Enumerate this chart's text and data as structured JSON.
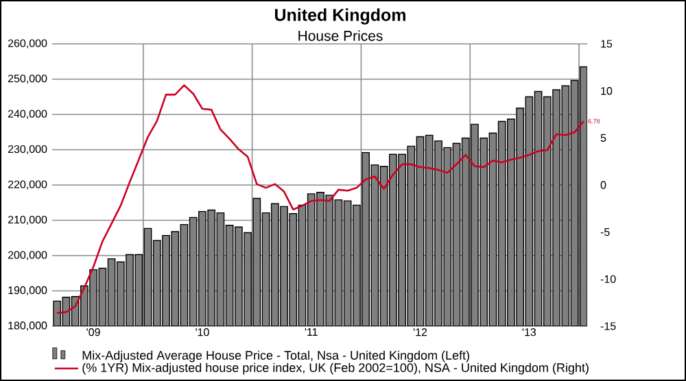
{
  "chart_data": {
    "type": "bar",
    "title": "United Kingdom",
    "subtitle": "House Prices",
    "x": [
      "2009-03",
      "2009-04",
      "2009-05",
      "2009-06",
      "2009-07",
      "2009-08",
      "2009-09",
      "2009-10",
      "2009-11",
      "2009-12",
      "2010-01",
      "2010-02",
      "2010-03",
      "2010-04",
      "2010-05",
      "2010-06",
      "2010-07",
      "2010-08",
      "2010-09",
      "2010-10",
      "2010-11",
      "2010-12",
      "2011-01",
      "2011-02",
      "2011-03",
      "2011-04",
      "2011-05",
      "2011-06",
      "2011-07",
      "2011-08",
      "2011-09",
      "2011-10",
      "2011-11",
      "2011-12",
      "2012-01",
      "2012-02",
      "2012-03",
      "2012-04",
      "2012-05",
      "2012-06",
      "2012-07",
      "2012-08",
      "2012-09",
      "2012-10",
      "2012-11",
      "2012-12",
      "2013-01",
      "2013-02",
      "2013-03",
      "2013-04",
      "2013-05",
      "2013-06",
      "2013-07",
      "2013-08",
      "2013-09",
      "2013-10",
      "2013-11",
      "2013-12",
      "2014-01"
    ],
    "series": [
      {
        "name": "Mix-Adjusted Average House Price - Total, Nsa - United Kingdom  (Left)",
        "color": "#808080",
        "values": [
          187100,
          188200,
          188400,
          191400,
          196000,
          196400,
          199100,
          198200,
          200300,
          200300,
          207700,
          204300,
          205700,
          206800,
          208800,
          210800,
          212500,
          212900,
          212100,
          208600,
          208100,
          206500,
          216200,
          212100,
          214700,
          213900,
          211900,
          214300,
          217500,
          217900,
          217100,
          215800,
          215500,
          214300,
          229200,
          225700,
          225300,
          228700,
          228700,
          231000,
          233700,
          234100,
          232500,
          230600,
          231800,
          233300,
          237200,
          233300,
          234700,
          238000,
          238700,
          241800,
          245000,
          246500,
          245000,
          247000,
          248100,
          249600,
          253500
        ]
      },
      {
        "name": "(% 1YR) Mix-adjusted house price index, UK (Feb 2002=100), NSA - United Kingdom  (Right)",
        "type": "line",
        "axis": "y2",
        "color": "#cc0022",
        "values": [
          -13.6,
          -13.5,
          -12.9,
          -10.9,
          -8.7,
          -6.0,
          -4.1,
          -2.2,
          0.3,
          2.7,
          5.1,
          6.8,
          9.6,
          9.6,
          10.6,
          9.7,
          8.1,
          8.0,
          5.9,
          4.9,
          3.8,
          3.0,
          0.1,
          -0.3,
          0.1,
          -0.7,
          -2.6,
          -2.2,
          -1.7,
          -1.6,
          -1.7,
          -0.5,
          -0.6,
          -0.3,
          0.6,
          0.9,
          -0.4,
          1.1,
          2.2,
          2.2,
          1.9,
          1.8,
          1.6,
          1.3,
          2.2,
          3.2,
          2.0,
          1.9,
          2.6,
          2.4,
          2.7,
          2.9,
          3.2,
          3.6,
          3.7,
          5.4,
          5.3,
          5.6,
          6.78
        ],
        "value_labels": [
          null,
          null,
          null,
          null,
          null,
          null,
          null,
          null,
          null,
          null,
          null,
          null,
          null,
          null,
          null,
          null,
          null,
          null,
          null,
          null,
          null,
          null,
          null,
          null,
          null,
          null,
          null,
          null,
          null,
          null,
          null,
          null,
          null,
          null,
          null,
          null,
          null,
          null,
          null,
          null,
          null,
          null,
          null,
          null,
          null,
          null,
          null,
          null,
          null,
          null,
          null,
          null,
          null,
          null,
          null,
          null,
          null,
          null,
          "6.78"
        ]
      }
    ],
    "xlim": [
      "2009-02-15",
      "2014-01-13"
    ],
    "xticks": [
      {
        "value": "2009-07-01",
        "label": "'09"
      },
      {
        "value": "2010-07-01",
        "label": "'10"
      },
      {
        "value": "2011-07-01",
        "label": "'11"
      },
      {
        "value": "2012-07-01",
        "label": "'12"
      },
      {
        "value": "2013-07-01",
        "label": "'13"
      },
      {
        "value": "2009-12-16",
        "label": null
      },
      {
        "value": "2010-12-16",
        "label": null
      },
      {
        "value": "2011-12-16",
        "label": null
      },
      {
        "value": "2012-12-16",
        "label": null
      },
      {
        "value": "2013-12-16",
        "label": null
      }
    ],
    "ylim": [
      180000,
      260000
    ],
    "yticks": [
      {
        "value": 180000,
        "label": "180,000"
      },
      {
        "value": 190000,
        "label": "190,000"
      },
      {
        "value": 200000,
        "label": "200,000"
      },
      {
        "value": 210000,
        "label": "210,000"
      },
      {
        "value": 220000,
        "label": "220,000"
      },
      {
        "value": 230000,
        "label": "230,000"
      },
      {
        "value": 240000,
        "label": "240,000"
      },
      {
        "value": 250000,
        "label": "250,000"
      },
      {
        "value": 260000,
        "label": "260,000"
      }
    ],
    "y2lim": [
      -15,
      15
    ],
    "y2ticks": [
      -15,
      -10,
      -5,
      0,
      5,
      10,
      15
    ],
    "grid": true,
    "legend": "bottom"
  }
}
